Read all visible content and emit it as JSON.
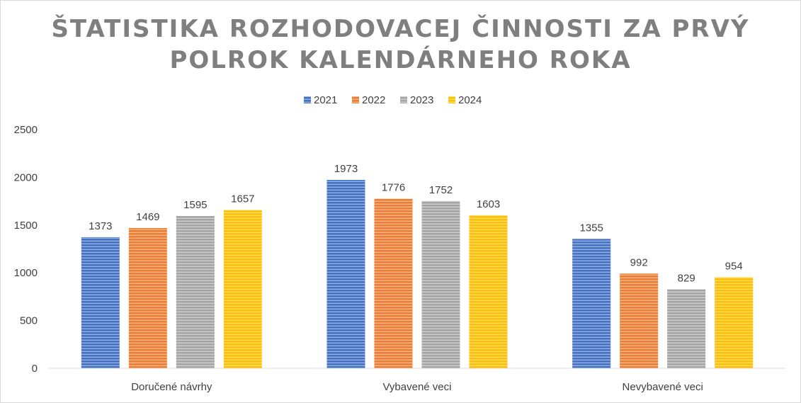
{
  "chart_data": {
    "type": "bar",
    "title_lines": [
      "ŠTATISTIKA ROZHODOVACEJ ČINNOSTI ZA PRVÝ",
      "POLROK KALENDÁRNEHO ROKA"
    ],
    "categories": [
      "Doručené návrhy",
      "Vybavené veci",
      "Nevybavené veci"
    ],
    "series": [
      {
        "name": "2021",
        "values": [
          1373,
          1973,
          1355
        ],
        "color": "#4472c4"
      },
      {
        "name": "2022",
        "values": [
          1469,
          1776,
          992
        ],
        "color": "#ed7d31"
      },
      {
        "name": "2023",
        "values": [
          1595,
          1752,
          829
        ],
        "color": "#a5a5a5"
      },
      {
        "name": "2024",
        "values": [
          1657,
          1603,
          954
        ],
        "color": "#ffc000"
      }
    ],
    "ylim": [
      0,
      2500
    ],
    "yticks": [
      "0",
      "500",
      "1000",
      "1500",
      "2000",
      "2500"
    ],
    "grid": false,
    "legend_position": "top-center",
    "data_labels": true,
    "bar_pattern": "horizontal-stripes"
  }
}
